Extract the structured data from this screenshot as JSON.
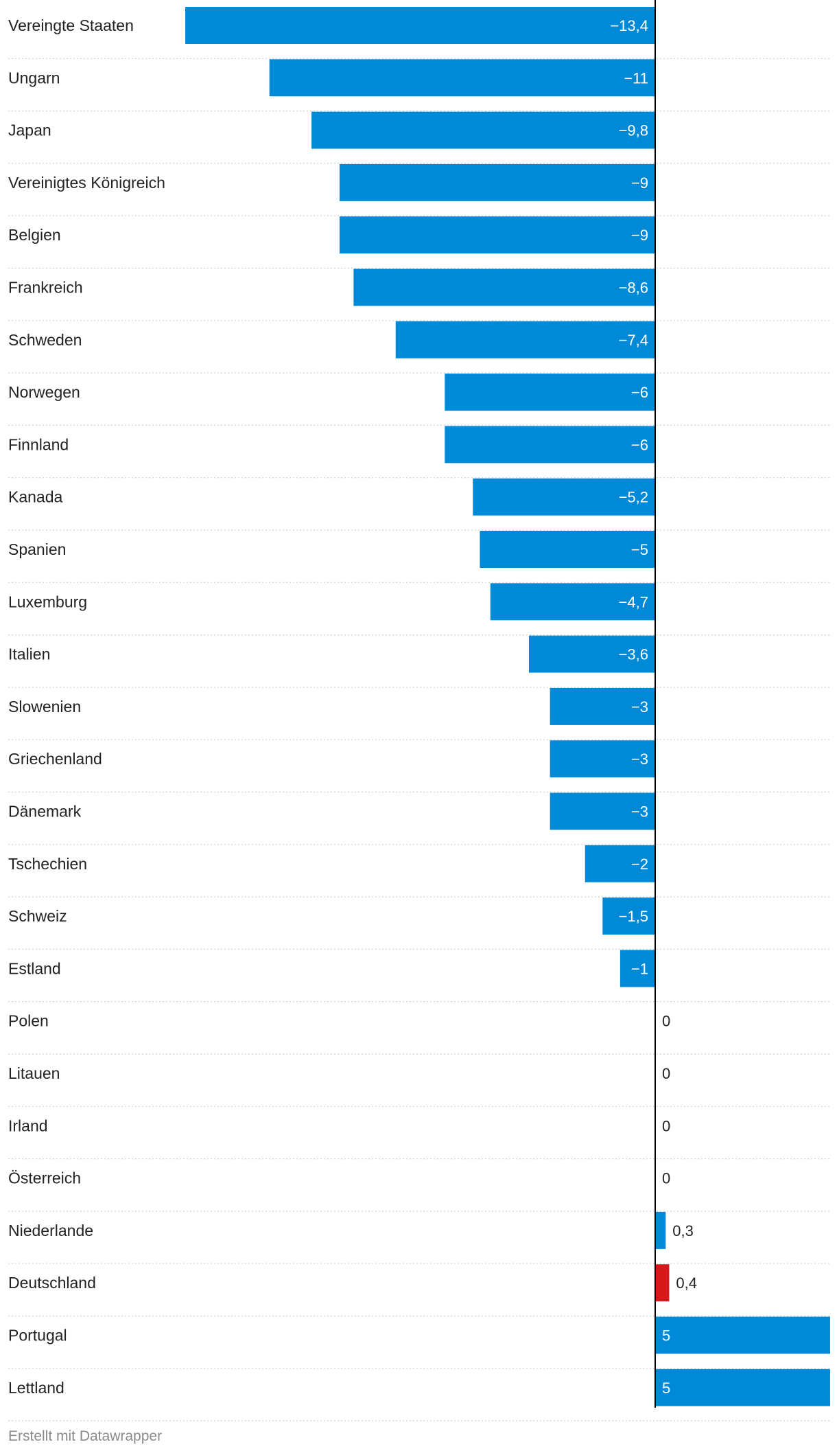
{
  "chart_data": {
    "type": "bar",
    "orientation": "horizontal",
    "title": "",
    "xlabel": "",
    "ylabel": "",
    "xlim": [
      -13.4,
      5
    ],
    "categories": [
      "Vereingte Staaten",
      "Ungarn",
      "Japan",
      "Vereinigtes Königreich",
      "Belgien",
      "Frankreich",
      "Schweden",
      "Norwegen",
      "Finnland",
      "Kanada",
      "Spanien",
      "Luxemburg",
      "Italien",
      "Slowenien",
      "Griechenland",
      "Dänemark",
      "Tschechien",
      "Schweiz",
      "Estland",
      "Polen",
      "Litauen",
      "Irland",
      "Österreich",
      "Niederlande",
      "Deutschland",
      "Portugal",
      "Lettland"
    ],
    "values": [
      -13.4,
      -11,
      -9.8,
      -9,
      -9,
      -8.6,
      -7.4,
      -6,
      -6,
      -5.2,
      -5,
      -4.7,
      -3.6,
      -3,
      -3,
      -3,
      -2,
      -1.5,
      -1,
      0,
      0,
      0,
      0,
      0.3,
      0.4,
      5,
      5
    ],
    "value_labels": [
      "−13,4",
      "−11",
      "−9,8",
      "−9",
      "−9",
      "−8,6",
      "−7,4",
      "−6",
      "−6",
      "−5,2",
      "−5",
      "−4,7",
      "−3,6",
      "−3",
      "−3",
      "−3",
      "−2",
      "−1,5",
      "−1",
      "0",
      "0",
      "0",
      "0",
      "0,3",
      "0,4",
      "5",
      "5"
    ],
    "highlight_category": "Deutschland",
    "colors": {
      "bar": "#0089d6",
      "highlight": "#d7191c",
      "axis": "#000000",
      "grid": "#d0d0d0",
      "label_inside": "#ffffff",
      "label_outside": "#222222"
    }
  },
  "footer": {
    "credit": "Erstellt mit Datawrapper"
  }
}
